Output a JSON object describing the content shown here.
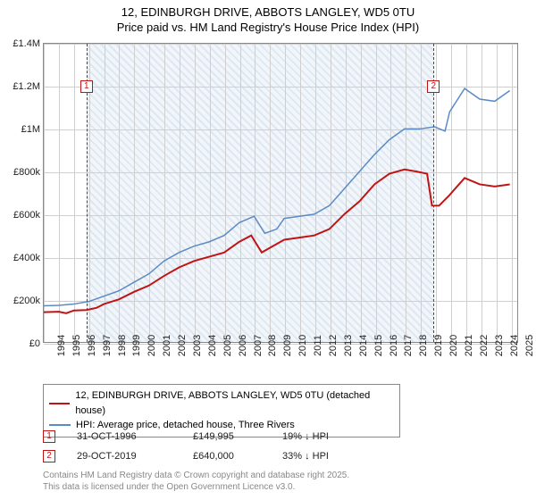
{
  "title": {
    "line1": "12, EDINBURGH DRIVE, ABBOTS LANGLEY, WD5 0TU",
    "line2": "Price paid vs. HM Land Registry's House Price Index (HPI)"
  },
  "chart": {
    "type": "line",
    "background_color": "#ffffff",
    "grid_color": "#cfcfcf",
    "hatch_band": {
      "x_from": 1996.83,
      "x_to": 2019.83,
      "fill": "#d9e3ee"
    },
    "xlim": [
      1994,
      2025.5
    ],
    "ylim": [
      0,
      1400000
    ],
    "y_ticks": [
      {
        "v": 0,
        "label": "£0"
      },
      {
        "v": 200000,
        "label": "£200k"
      },
      {
        "v": 400000,
        "label": "£400k"
      },
      {
        "v": 600000,
        "label": "£600k"
      },
      {
        "v": 800000,
        "label": "£800k"
      },
      {
        "v": 1000000,
        "label": "£1M"
      },
      {
        "v": 1200000,
        "label": "£1.2M"
      },
      {
        "v": 1400000,
        "label": "£1.4M"
      }
    ],
    "x_ticks": [
      1994,
      1995,
      1996,
      1997,
      1998,
      1999,
      2000,
      2001,
      2002,
      2003,
      2004,
      2005,
      2006,
      2007,
      2008,
      2009,
      2010,
      2011,
      2012,
      2013,
      2014,
      2015,
      2016,
      2017,
      2018,
      2019,
      2020,
      2021,
      2022,
      2023,
      2024,
      2025
    ],
    "markers": [
      {
        "n": "1",
        "x": 1996.83,
        "y": 1200000
      },
      {
        "n": "2",
        "x": 2019.83,
        "y": 1200000
      }
    ],
    "series": [
      {
        "name": "price_paid",
        "color": "#c01414",
        "width": 2,
        "points": [
          [
            1994,
            140000
          ],
          [
            1995,
            142000
          ],
          [
            1995.5,
            135000
          ],
          [
            1996,
            148000
          ],
          [
            1996.83,
            149995
          ],
          [
            1997.5,
            160000
          ],
          [
            1998,
            178000
          ],
          [
            1999,
            200000
          ],
          [
            2000,
            235000
          ],
          [
            2001,
            265000
          ],
          [
            2002,
            310000
          ],
          [
            2003,
            350000
          ],
          [
            2004,
            380000
          ],
          [
            2005,
            400000
          ],
          [
            2006,
            420000
          ],
          [
            2007,
            470000
          ],
          [
            2007.8,
            500000
          ],
          [
            2008.5,
            420000
          ],
          [
            2009,
            440000
          ],
          [
            2010,
            480000
          ],
          [
            2011,
            490000
          ],
          [
            2012,
            500000
          ],
          [
            2013,
            530000
          ],
          [
            2014,
            600000
          ],
          [
            2015,
            660000
          ],
          [
            2016,
            740000
          ],
          [
            2017,
            790000
          ],
          [
            2018,
            810000
          ],
          [
            2018.8,
            800000
          ],
          [
            2019.5,
            790000
          ],
          [
            2019.83,
            640000
          ],
          [
            2020.3,
            640000
          ],
          [
            2021,
            690000
          ],
          [
            2022,
            770000
          ],
          [
            2023,
            740000
          ],
          [
            2024,
            730000
          ],
          [
            2025,
            740000
          ]
        ]
      },
      {
        "name": "hpi",
        "color": "#5b8bc4",
        "width": 1.5,
        "points": [
          [
            1994,
            170000
          ],
          [
            1995,
            172000
          ],
          [
            1996,
            178000
          ],
          [
            1997,
            190000
          ],
          [
            1998,
            215000
          ],
          [
            1999,
            240000
          ],
          [
            2000,
            280000
          ],
          [
            2001,
            320000
          ],
          [
            2002,
            380000
          ],
          [
            2003,
            420000
          ],
          [
            2004,
            450000
          ],
          [
            2005,
            470000
          ],
          [
            2006,
            500000
          ],
          [
            2007,
            560000
          ],
          [
            2008,
            590000
          ],
          [
            2008.7,
            510000
          ],
          [
            2009.5,
            530000
          ],
          [
            2010,
            580000
          ],
          [
            2011,
            590000
          ],
          [
            2012,
            600000
          ],
          [
            2013,
            640000
          ],
          [
            2014,
            720000
          ],
          [
            2015,
            800000
          ],
          [
            2016,
            880000
          ],
          [
            2017,
            950000
          ],
          [
            2018,
            1000000
          ],
          [
            2019,
            1000000
          ],
          [
            2020,
            1010000
          ],
          [
            2020.7,
            990000
          ],
          [
            2021,
            1080000
          ],
          [
            2022,
            1190000
          ],
          [
            2023,
            1140000
          ],
          [
            2024,
            1130000
          ],
          [
            2025,
            1180000
          ]
        ]
      }
    ]
  },
  "legend": {
    "items": [
      {
        "color": "#c01414",
        "label": "12, EDINBURGH DRIVE, ABBOTS LANGLEY, WD5 0TU (detached house)"
      },
      {
        "color": "#5b8bc4",
        "label": "HPI: Average price, detached house, Three Rivers"
      }
    ]
  },
  "data_rows": [
    {
      "n": "1",
      "date": "31-OCT-1996",
      "price": "£149,995",
      "pct": "19% ↓ HPI"
    },
    {
      "n": "2",
      "date": "29-OCT-2019",
      "price": "£640,000",
      "pct": "33% ↓ HPI"
    }
  ],
  "footer": {
    "line1": "Contains HM Land Registry data © Crown copyright and database right 2025.",
    "line2": "This data is licensed under the Open Government Licence v3.0."
  }
}
